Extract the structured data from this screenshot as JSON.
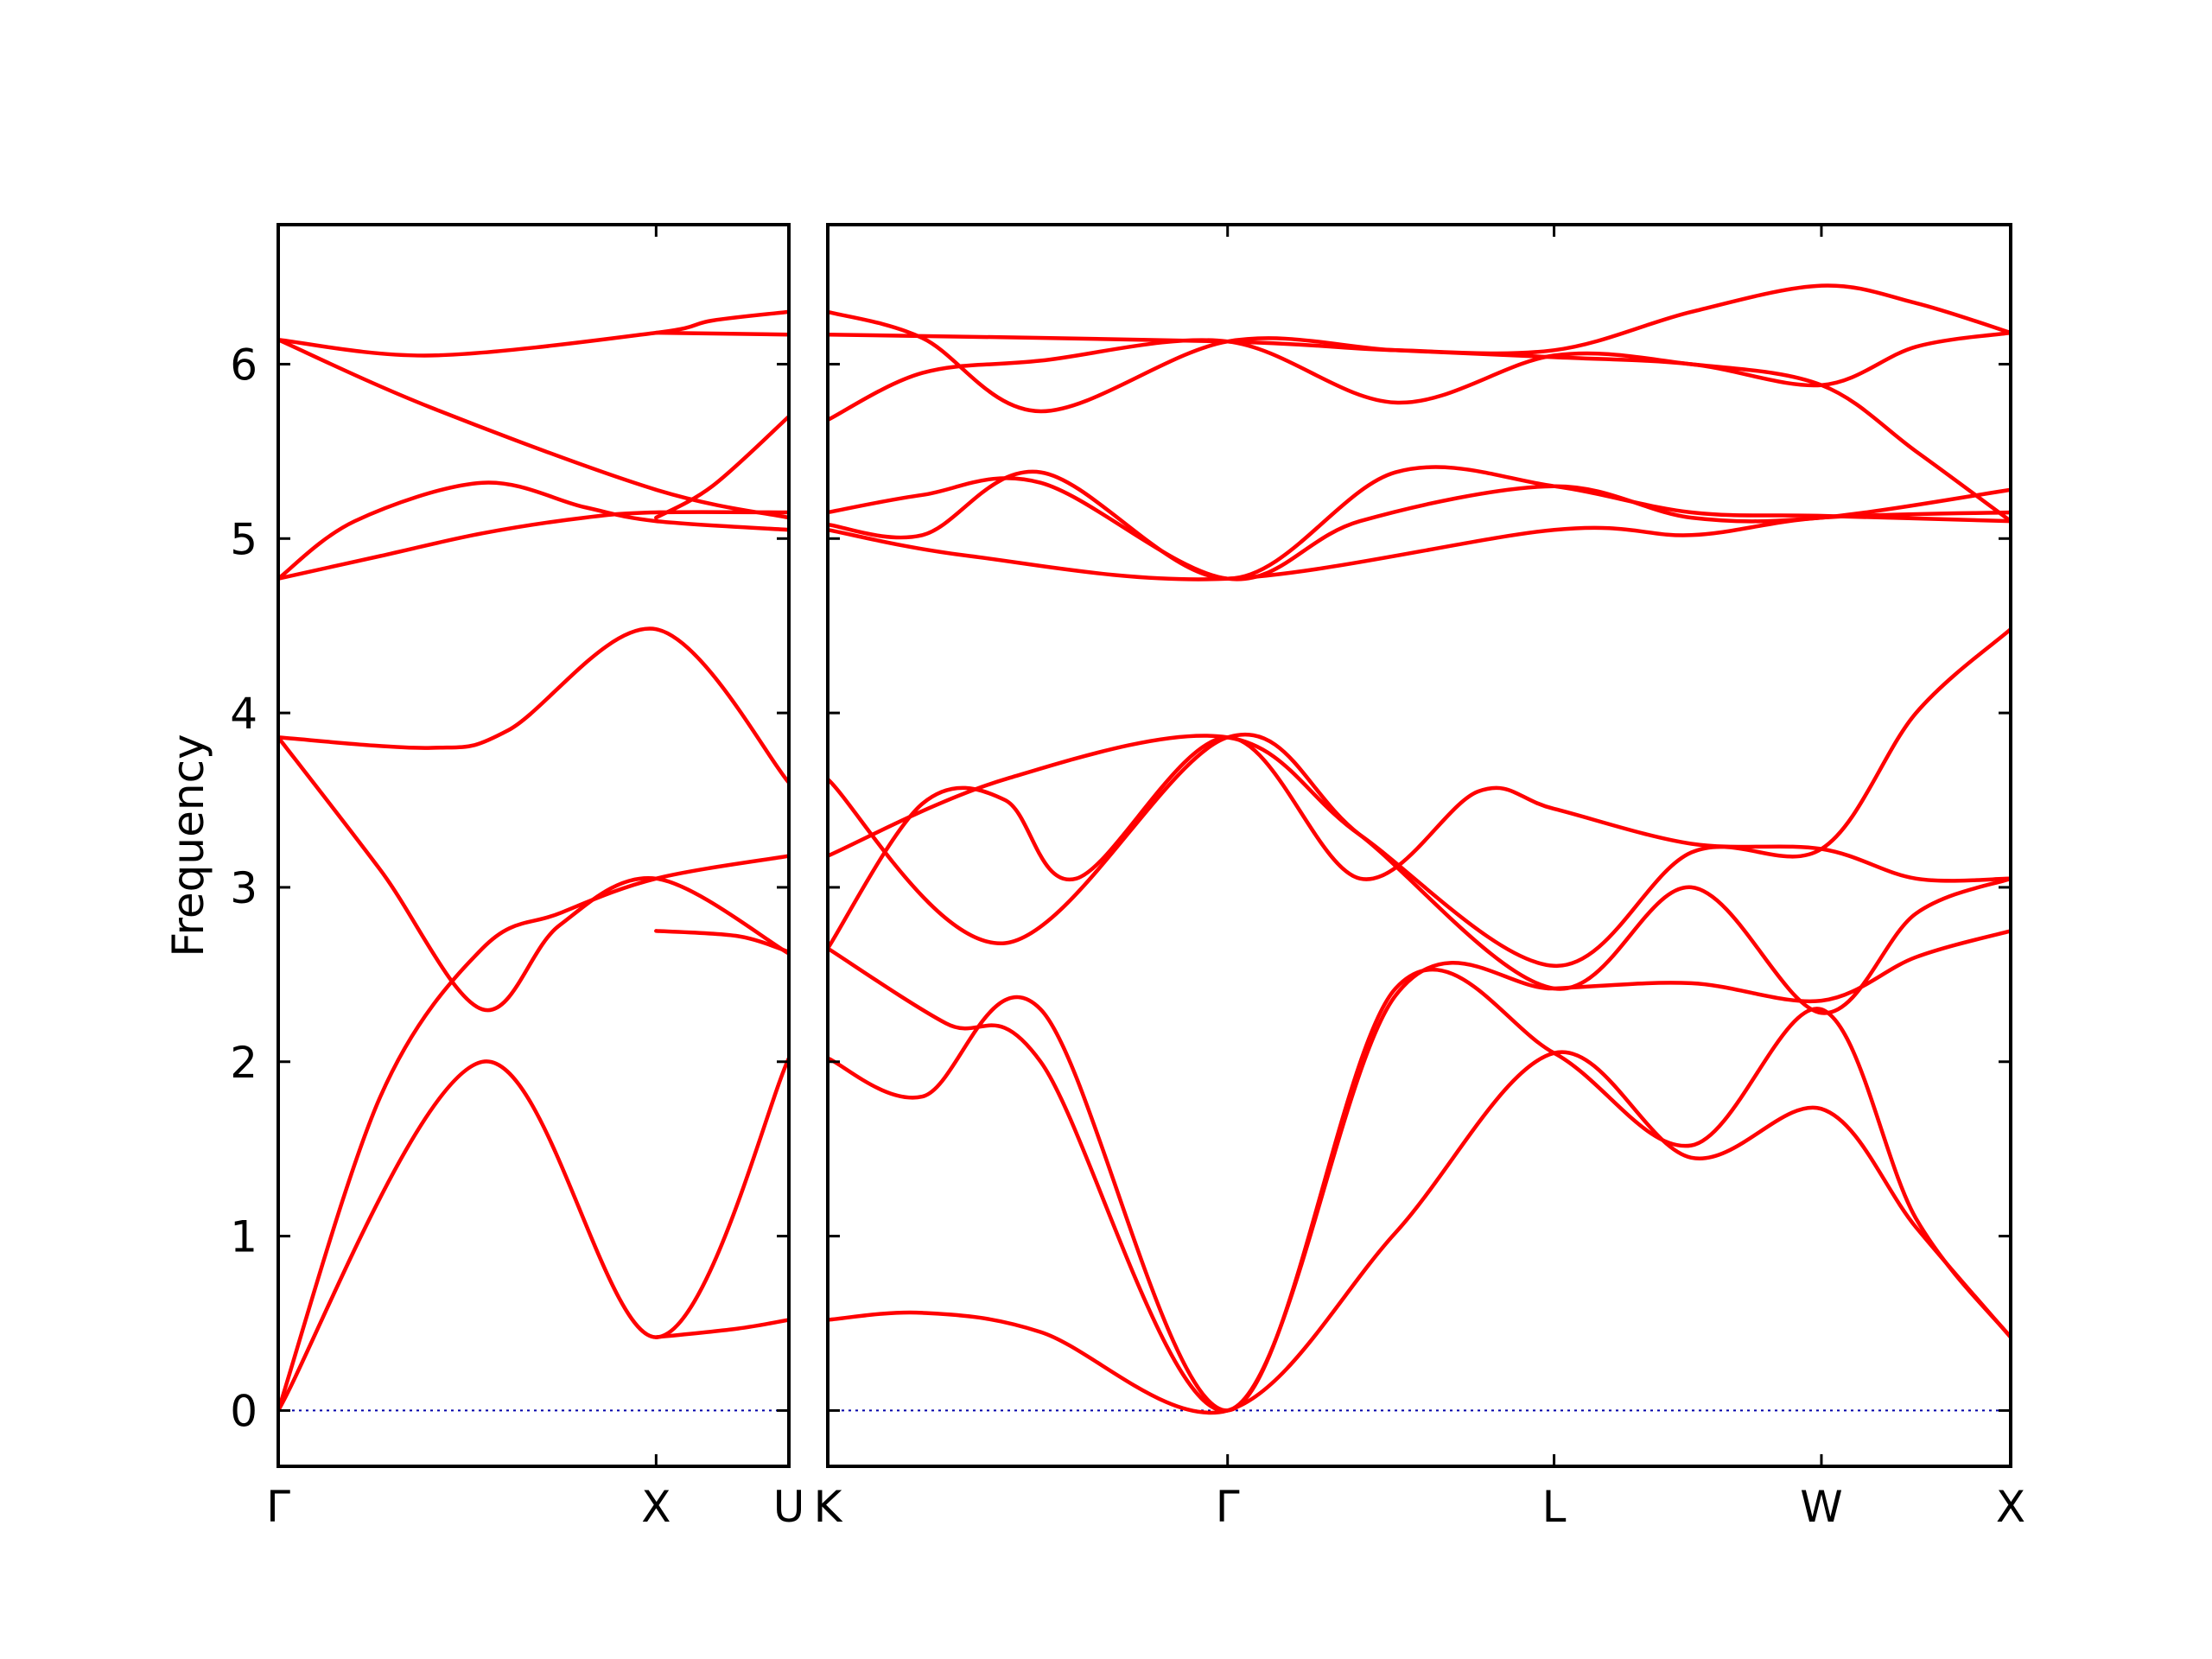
{
  "chart_data": {
    "type": "line",
    "title": "",
    "xlabel": "",
    "ylabel": "Frequency",
    "ylim": [
      -0.32,
      6.8
    ],
    "yticks": [
      0,
      1,
      2,
      3,
      4,
      5,
      6
    ],
    "grid": false,
    "legend": "none",
    "colors": {
      "bands": "#ff0000",
      "zero_line": "#0000aa",
      "frame": "#000000"
    },
    "panels": [
      {
        "xlim": [
          0,
          1.0
        ],
        "ticks": [
          {
            "x": 0.0,
            "label": "Γ"
          },
          {
            "x": 0.74,
            "label": "X"
          },
          {
            "x": 1.0,
            "label": "U"
          }
        ],
        "bands": [
          {
            "x": [
              0,
              0.4,
              0.74,
              1.0
            ],
            "y": [
              0,
              2.0,
              0.42,
              2.02
            ]
          },
          {
            "x": [
              0,
              0.2,
              0.4,
              0.55,
              0.74,
              1.0
            ],
            "y": [
              0,
              1.8,
              2.65,
              2.85,
              3.05,
              3.18
            ]
          },
          {
            "x": [
              0,
              0.2,
              0.4,
              0.55,
              0.74,
              1.0
            ],
            "y": [
              3.86,
              3.1,
              2.3,
              2.78,
              3.05,
              2.62
            ]
          },
          {
            "x": [
              0,
              0.3,
              0.45,
              0.74,
              1.0
            ],
            "y": [
              3.86,
              3.8,
              3.9,
              4.48,
              3.6
            ]
          },
          {
            "x": [
              0,
              0.2,
              0.4,
              0.6,
              0.74,
              1.0
            ],
            "y": [
              4.77,
              4.9,
              5.03,
              5.12,
              5.15,
              5.15
            ]
          },
          {
            "x": [
              0,
              0.15,
              0.4,
              0.6,
              0.74,
              1.0
            ],
            "y": [
              4.77,
              5.1,
              5.32,
              5.18,
              5.1,
              5.05
            ]
          },
          {
            "x": [
              0,
              0.3,
              0.74,
              0.85,
              1.0
            ],
            "y": [
              6.14,
              6.05,
              6.18,
              6.25,
              6.3
            ]
          },
          {
            "x": [
              0,
              0.3,
              0.74,
              1.0
            ],
            "y": [
              6.14,
              5.75,
              5.28,
              5.12
            ]
          },
          {
            "x": [
              0.74,
              1.0
            ],
            "y": [
              6.18,
              6.17
            ]
          },
          {
            "x": [
              0.74,
              0.85,
              1.0
            ],
            "y": [
              5.12,
              5.3,
              5.7
            ]
          },
          {
            "x": [
              0.74,
              0.9,
              1.0
            ],
            "y": [
              0.42,
              0.47,
              0.52
            ]
          },
          {
            "x": [
              0.74,
              0.9,
              1.0
            ],
            "y": [
              2.75,
              2.72,
              2.63
            ]
          }
        ]
      },
      {
        "xlim": [
          0,
          1.0
        ],
        "ticks": [
          {
            "x": 0.0,
            "label": "K"
          },
          {
            "x": 0.338,
            "label": "Γ"
          },
          {
            "x": 0.614,
            "label": "L"
          },
          {
            "x": 0.84,
            "label": "W"
          },
          {
            "x": 1.0,
            "label": "X"
          }
        ],
        "bands": [
          {
            "x": [
              0,
              0.08,
              0.18,
              0.338,
              0.48,
              0.614,
              0.73,
              0.84,
              0.92,
              1.0
            ],
            "y": [
              0.52,
              0.56,
              0.45,
              0.0,
              1.02,
              2.05,
              1.45,
              1.73,
              1.05,
              0.42
            ]
          },
          {
            "x": [
              0,
              0.08,
              0.18,
              0.338,
              0.48,
              0.614,
              0.73,
              0.84,
              0.92,
              1.0
            ],
            "y": [
              2.02,
              1.8,
              2.3,
              0.0,
              2.42,
              2.05,
              1.52,
              2.3,
              1.1,
              0.42
            ]
          },
          {
            "x": [
              0,
              0.1,
              0.18,
              0.338,
              0.48,
              0.614,
              0.73,
              0.84,
              0.92,
              1.0
            ],
            "y": [
              2.65,
              2.22,
              2.0,
              0.0,
              2.38,
              2.42,
              2.45,
              2.35,
              2.6,
              2.75
            ]
          },
          {
            "x": [
              0,
              0.08,
              0.15,
              0.21,
              0.338,
              0.45,
              0.55,
              0.614,
              0.73,
              0.84,
              0.92,
              1.0
            ],
            "y": [
              2.65,
              3.48,
              3.5,
              3.05,
              3.86,
              3.05,
              3.55,
              3.45,
              3.25,
              3.22,
              3.05,
              3.05
            ]
          },
          {
            "x": [
              0,
              0.15,
              0.338,
              0.45,
              0.614,
              0.73,
              0.84,
              0.92,
              1.0
            ],
            "y": [
              3.62,
              2.68,
              3.86,
              3.3,
              2.42,
              3.0,
              2.28,
              2.85,
              3.05
            ]
          },
          {
            "x": [
              0,
              0.15,
              0.338,
              0.45,
              0.614,
              0.73,
              0.84,
              0.92,
              1.0
            ],
            "y": [
              3.18,
              3.62,
              3.86,
              3.3,
              2.55,
              3.2,
              3.22,
              4.0,
              4.48
            ]
          },
          {
            "x": [
              0,
              0.12,
              0.338,
              0.614,
              0.73,
              0.84,
              1.0
            ],
            "y": [
              5.05,
              4.9,
              4.77,
              5.05,
              5.02,
              5.12,
              5.15
            ]
          },
          {
            "x": [
              0,
              0.08,
              0.18,
              0.338,
              0.48,
              0.614,
              0.73,
              0.84,
              1.0
            ],
            "y": [
              5.08,
              5.02,
              5.38,
              4.77,
              5.38,
              5.3,
              5.15,
              5.13,
              5.1
            ]
          },
          {
            "x": [
              0,
              0.08,
              0.18,
              0.338,
              0.45,
              0.614,
              0.73,
              0.84,
              1.0
            ],
            "y": [
              5.15,
              5.25,
              5.32,
              4.77,
              5.1,
              5.3,
              5.12,
              5.12,
              5.28
            ]
          },
          {
            "x": [
              0,
              0.08,
              0.18,
              0.338,
              0.48,
              0.614,
              0.73,
              0.84,
              0.92,
              1.0
            ],
            "y": [
              5.68,
              5.95,
              6.02,
              6.13,
              5.78,
              6.05,
              6.0,
              5.88,
              5.5,
              5.1
            ]
          },
          {
            "x": [
              0,
              0.08,
              0.18,
              0.338,
              0.48,
              0.614,
              0.73,
              0.84,
              0.92,
              1.0
            ],
            "y": [
              6.3,
              6.15,
              5.73,
              6.13,
              6.08,
              6.04,
              6.0,
              5.88,
              6.1,
              6.18
            ]
          },
          {
            "x": [
              0,
              0.338,
              0.48,
              0.614,
              0.73,
              0.84,
              0.92,
              1.0
            ],
            "y": [
              6.17,
              6.13,
              6.08,
              6.08,
              6.3,
              6.45,
              6.35,
              6.18
            ]
          }
        ]
      }
    ]
  }
}
